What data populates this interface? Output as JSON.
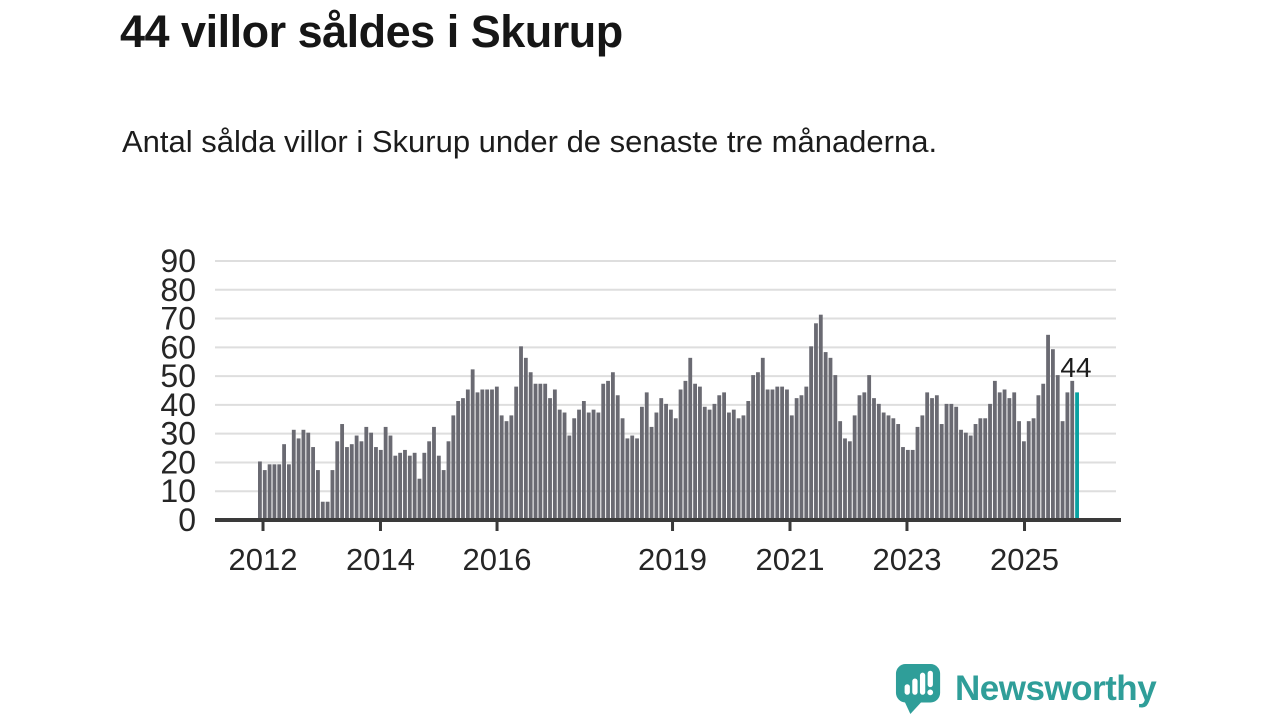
{
  "header": {
    "title": "44 villor såldes i Skurup",
    "subtitle": "Antal sålda villor i Skurup under de senaste tre månaderna."
  },
  "chart_data": {
    "type": "bar",
    "title": "44 villor såldes i Skurup",
    "subtitle": "Antal sålda villor i Skurup under de senaste tre månaderna.",
    "description": "Monthly rolling three-month count of houses sold in Skurup, 2012 to late 2025",
    "values": [
      20,
      17,
      19,
      19,
      19,
      26,
      19,
      31,
      28,
      31,
      30,
      25,
      17,
      6,
      6,
      17,
      27,
      33,
      25,
      26,
      29,
      27,
      32,
      30,
      25,
      24,
      32,
      29,
      22,
      23,
      24,
      22,
      23,
      14,
      23,
      27,
      32,
      22,
      17,
      27,
      36,
      41,
      42,
      45,
      52,
      44,
      45,
      45,
      45,
      46,
      36,
      34,
      36,
      46,
      60,
      56,
      51,
      47,
      47,
      47,
      42,
      45,
      38,
      37,
      29,
      35,
      38,
      41,
      37,
      38,
      37,
      47,
      48,
      51,
      43,
      35,
      28,
      29,
      28,
      39,
      44,
      32,
      37,
      42,
      40,
      38,
      35,
      45,
      48,
      56,
      47,
      46,
      39,
      38,
      40,
      43,
      44,
      37,
      38,
      35,
      36,
      41,
      50,
      51,
      56,
      45,
      45,
      46,
      46,
      45,
      36,
      42,
      43,
      46,
      60,
      68,
      71,
      58,
      56,
      50,
      34,
      28,
      27,
      36,
      43,
      44,
      50,
      42,
      40,
      37,
      36,
      35,
      33,
      25,
      24,
      24,
      32,
      36,
      44,
      42,
      43,
      33,
      40,
      40,
      39,
      31,
      30,
      29,
      33,
      35,
      35,
      40,
      48,
      44,
      45,
      42,
      44,
      34,
      27,
      34,
      35,
      43,
      47,
      64,
      59,
      50,
      34,
      44,
      48,
      44
    ],
    "highlight_index": 169,
    "highlight_label": "44",
    "x_axis": {
      "ticks": [
        {
          "label": "2012",
          "pct": 0.61
        },
        {
          "label": "2014",
          "pct": 14.9
        },
        {
          "label": "2016",
          "pct": 29.08
        },
        {
          "label": "2019",
          "pct": 50.43
        },
        {
          "label": "2021",
          "pct": 64.72
        },
        {
          "label": "2023",
          "pct": 78.95
        },
        {
          "label": "2025",
          "pct": 93.25
        }
      ]
    },
    "y_axis": {
      "min": 0,
      "max": 90,
      "step": 10,
      "tick_labels": [
        "0",
        "10",
        "20",
        "30",
        "40",
        "50",
        "60",
        "70",
        "80",
        "90"
      ]
    },
    "grid": true,
    "legend": "none",
    "colors": {
      "bar": "#6a6a72",
      "highlight": "#09a1a1",
      "grid": "#dedede",
      "axis": "#3a3a3a",
      "text": "#262626"
    }
  },
  "footer": {
    "brand": "Newsworthy",
    "brand_color": "#2f9e99"
  }
}
